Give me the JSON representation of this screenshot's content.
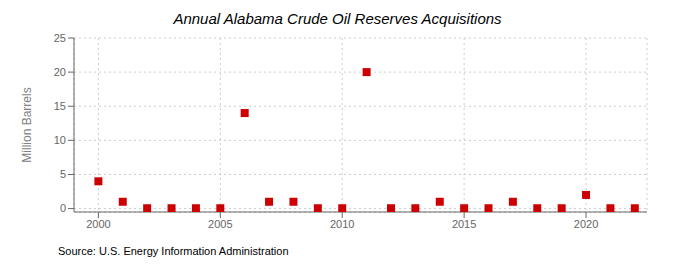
{
  "chart_data": {
    "type": "scatter",
    "title": "Annual Alabama Crude Oil Reserves Acquisitions",
    "ylabel": "Million Barrels",
    "annotations": [
      "Source: U.S. Energy Information Administration"
    ],
    "x": [
      2000,
      2001,
      2002,
      2003,
      2004,
      2005,
      2006,
      2007,
      2008,
      2009,
      2010,
      2011,
      2012,
      2013,
      2014,
      2015,
      2016,
      2017,
      2018,
      2019,
      2020,
      2021,
      2022
    ],
    "values": [
      4.0,
      1.0,
      0.05,
      0.05,
      0.05,
      0.05,
      14.0,
      1.0,
      1.0,
      0.05,
      0.05,
      20.0,
      0.05,
      0.05,
      1.0,
      0.05,
      0.05,
      1.0,
      0.05,
      0.05,
      2.0,
      0.05,
      0.05
    ],
    "color": "#cc0000",
    "marker": "square",
    "xlim": [
      1999,
      2022.5
    ],
    "xticks": [
      2000,
      2005,
      2010,
      2015,
      2020
    ],
    "ylim": [
      -0.5,
      25
    ],
    "yticks": [
      0,
      5,
      10,
      15,
      20,
      25
    ],
    "grid": true
  }
}
